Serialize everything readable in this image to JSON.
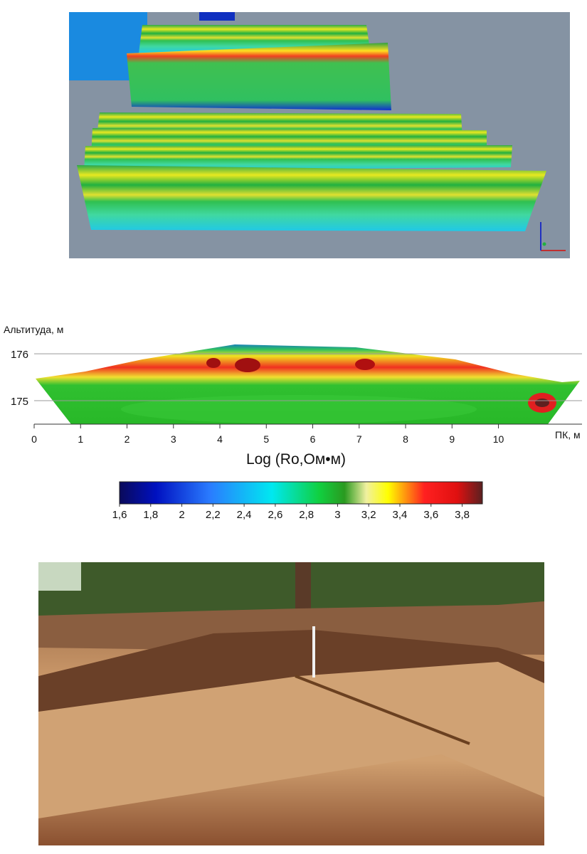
{
  "section": {
    "y_label": "Альтитуда, м",
    "x_label": "ПК, м",
    "xlim": [
      0,
      11.8
    ],
    "xticks": [
      0,
      1,
      2,
      3,
      4,
      5,
      6,
      7,
      8,
      9,
      10
    ],
    "ylim": [
      174.5,
      176.23
    ],
    "yticks": [
      175,
      176
    ],
    "grid": true
  },
  "colorbar": {
    "title": "Log (Ro,Ом•м)",
    "lim": [
      1.6,
      3.93
    ],
    "ticks": [
      {
        "value": 1.6,
        "label": "1,6"
      },
      {
        "value": 1.8,
        "label": "1,8"
      },
      2,
      {
        "value": 2.2,
        "label": "2,2"
      },
      {
        "value": 2.4,
        "label": "2,4"
      },
      {
        "value": 2.6,
        "label": "2,6"
      },
      {
        "value": 2.8,
        "label": "2,8"
      },
      3,
      {
        "value": 3.2,
        "label": "3,2"
      },
      {
        "value": 3.4,
        "label": "3,4"
      },
      {
        "value": 3.6,
        "label": "3,6"
      },
      {
        "value": 3.8,
        "label": "3,8"
      }
    ]
  }
}
